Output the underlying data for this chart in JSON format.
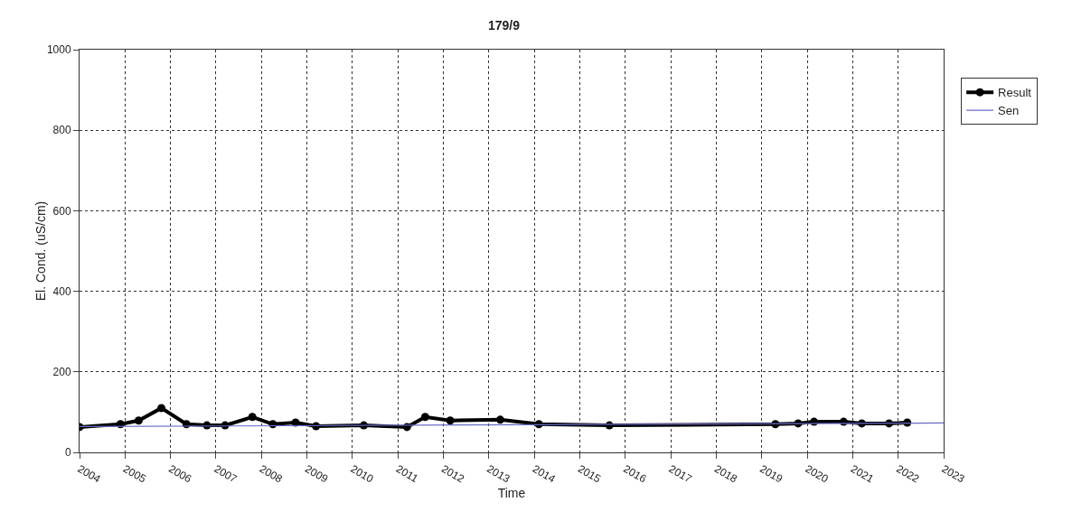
{
  "chart_data": {
    "type": "line",
    "title": "179/9",
    "xlabel": "Time",
    "ylabel": "El. Cond. (uS/cm)",
    "xlim": [
      2004,
      2023
    ],
    "xticks": [
      2004,
      2005,
      2006,
      2007,
      2008,
      2009,
      2010,
      2011,
      2012,
      2013,
      2014,
      2015,
      2016,
      2017,
      2018,
      2019,
      2020,
      2021,
      2022,
      2023
    ],
    "ylim": [
      0,
      1000
    ],
    "yticks": [
      0,
      200,
      400,
      600,
      800,
      1000
    ],
    "grid": true,
    "legend": "right",
    "series": [
      {
        "name": "Result",
        "color": "#000000",
        "marker": "circle",
        "x": [
          2004.0,
          2004.9,
          2005.3,
          2005.8,
          2006.35,
          2006.8,
          2007.2,
          2007.8,
          2008.25,
          2008.75,
          2009.2,
          2010.25,
          2011.2,
          2011.6,
          2012.15,
          2013.25,
          2014.1,
          2015.65,
          2019.3,
          2019.8,
          2020.15,
          2020.8,
          2021.2,
          2021.8,
          2022.2
        ],
        "values": [
          63,
          70,
          79,
          110,
          70,
          67,
          67,
          88,
          70,
          74,
          65,
          67,
          63,
          88,
          79,
          81,
          70,
          67,
          70,
          72,
          76,
          76,
          72,
          72,
          74
        ]
      },
      {
        "name": "Sen",
        "color": "#6a6ac8",
        "marker": "none",
        "x": [
          2004,
          2023
        ],
        "values": [
          64,
          73
        ]
      }
    ]
  }
}
